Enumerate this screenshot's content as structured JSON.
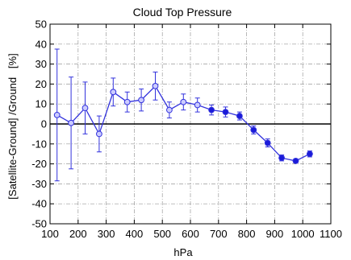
{
  "chart_data": {
    "type": "line",
    "title": "Cloud Top Pressure",
    "xlabel": "hPa",
    "ylabel": "[Satellite-Ground] /Ground   [%]",
    "xlim": [
      100,
      1100
    ],
    "ylim": [
      -50,
      50
    ],
    "xticks": [
      100,
      200,
      300,
      400,
      500,
      600,
      700,
      800,
      900,
      1000,
      1100
    ],
    "yticks": [
      -50,
      -40,
      -30,
      -20,
      -10,
      0,
      10,
      20,
      30,
      40,
      50
    ],
    "grid": true,
    "reference_line_y": 0,
    "colors": {
      "line": "#3333dd",
      "open_marker_fill": "#ccccff",
      "filled_marker": "#1a1ad9",
      "reference_line": "#000000"
    },
    "series": [
      {
        "x": [
          125,
          175,
          225,
          275,
          325,
          375,
          425,
          475,
          525,
          575,
          625,
          675,
          725,
          775,
          825,
          875,
          925,
          975,
          1025
        ],
        "y": [
          4.5,
          0.5,
          8,
          -5,
          16,
          11,
          12,
          19,
          7,
          11,
          9.5,
          7,
          6,
          4,
          -3,
          -9.5,
          -17,
          -18.5,
          -15
        ],
        "error": [
          33,
          23,
          13,
          9,
          7,
          5,
          5.5,
          7,
          4,
          4,
          3.5,
          2.5,
          2.5,
          2,
          2,
          2,
          1.5,
          1,
          1.5
        ],
        "marker_filled": [
          false,
          false,
          false,
          false,
          false,
          false,
          false,
          false,
          false,
          false,
          false,
          true,
          true,
          true,
          true,
          true,
          true,
          true,
          true
        ]
      }
    ]
  }
}
